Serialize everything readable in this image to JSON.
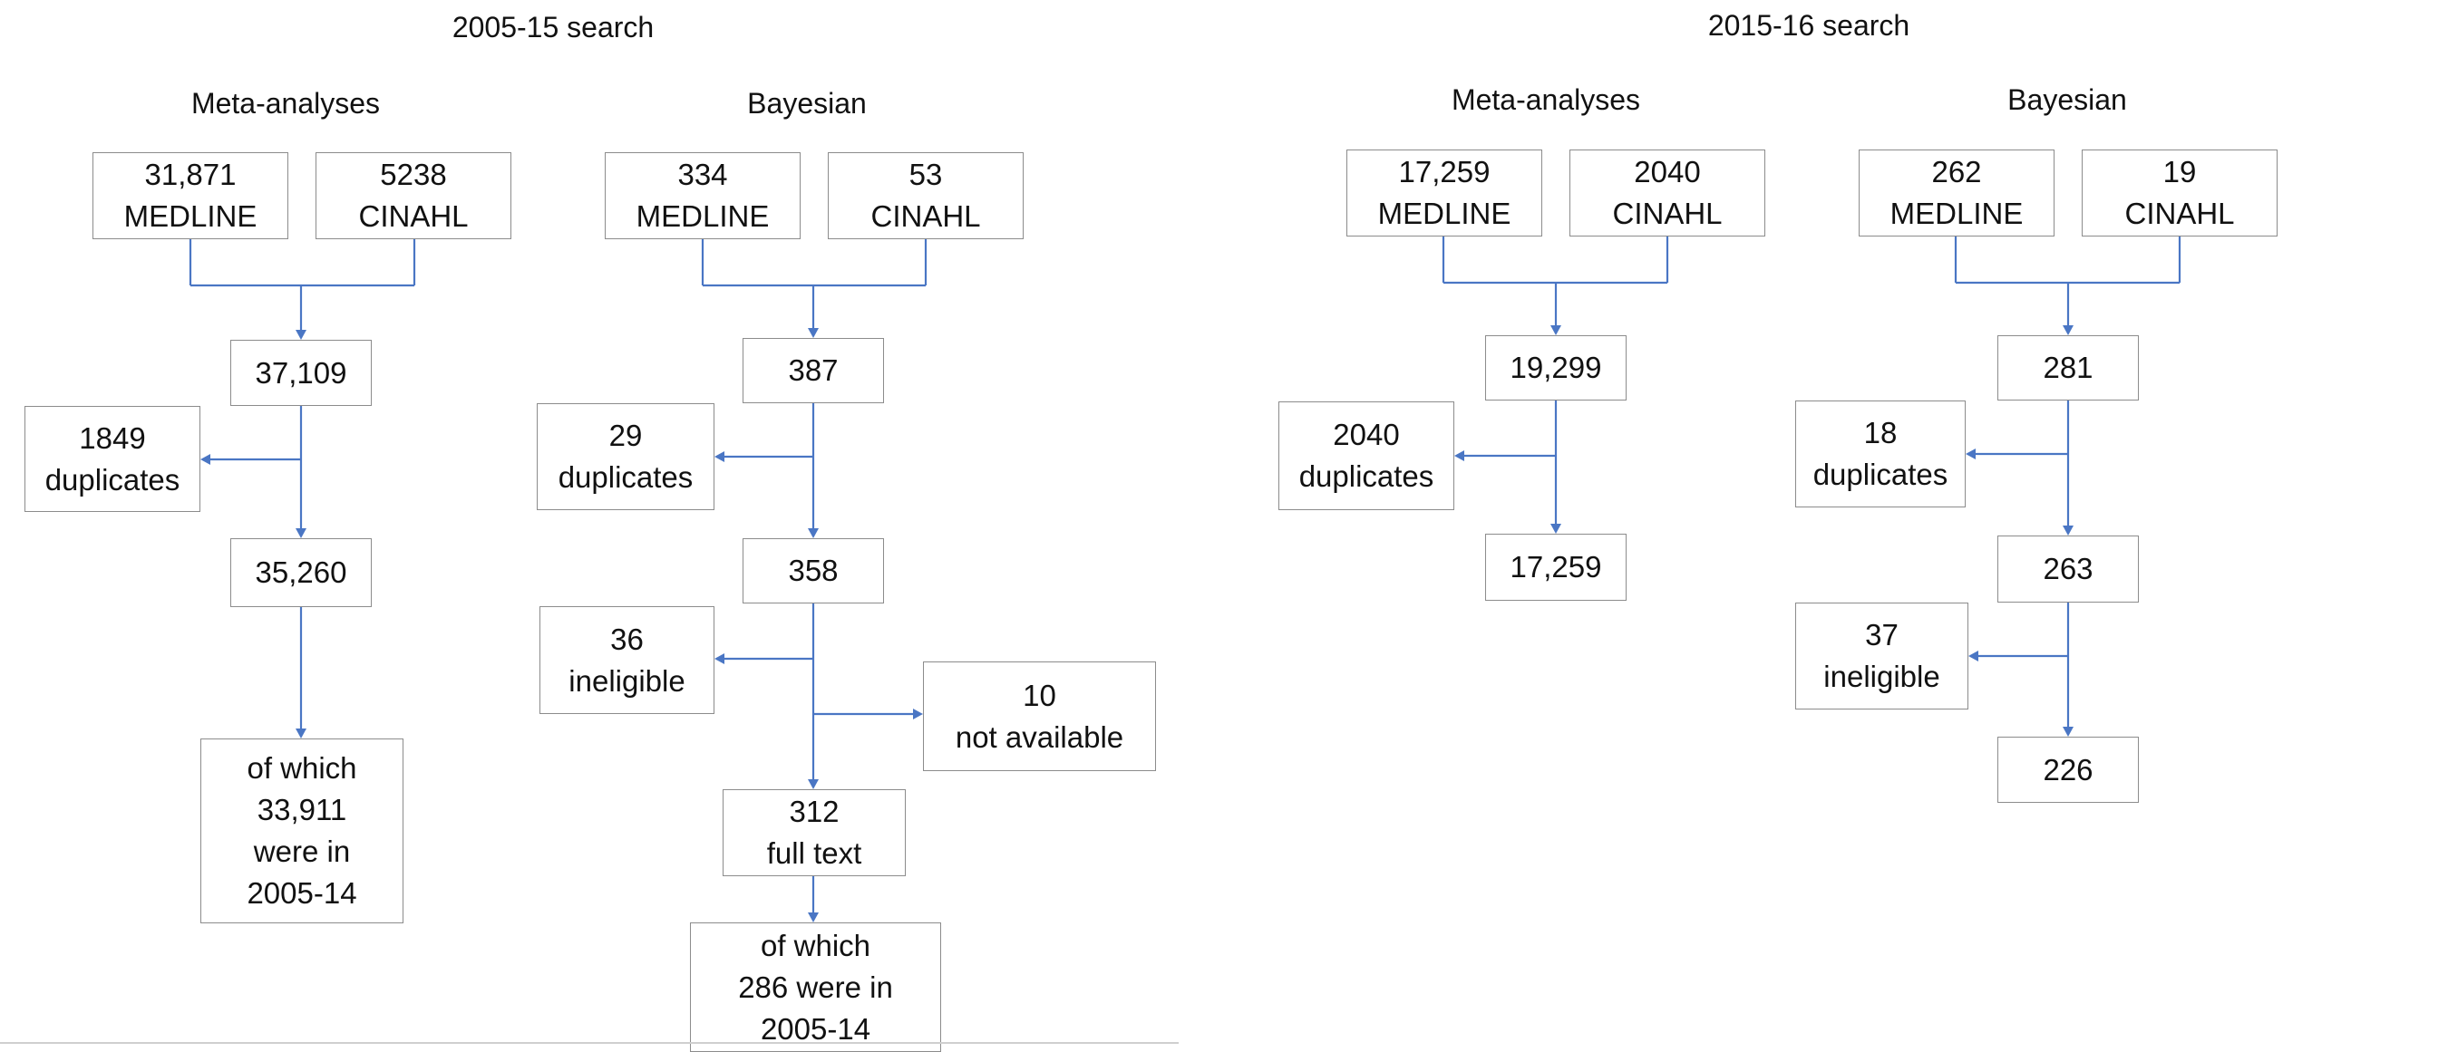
{
  "search_2005_15": {
    "title": "2005-15 search",
    "meta": {
      "heading": "Meta-analyses",
      "medline": [
        "31,871",
        "MEDLINE"
      ],
      "cinahl": [
        "5238",
        "CINAHL"
      ],
      "total": "37,109",
      "duplicates": [
        "1849",
        "duplicates"
      ],
      "after_dup": "35,260",
      "final": [
        "of which",
        "33,911",
        "were in",
        "2005-14"
      ]
    },
    "bayes": {
      "heading": "Bayesian",
      "medline": [
        "334",
        "MEDLINE"
      ],
      "cinahl": [
        "53",
        "CINAHL"
      ],
      "total": "387",
      "duplicates": [
        "29",
        "duplicates"
      ],
      "after_dup": "358",
      "ineligible": [
        "36",
        "ineligible"
      ],
      "not_available": [
        "10",
        "not available"
      ],
      "full_text": [
        "312",
        "full text"
      ],
      "final": [
        "of which",
        "286 were in",
        "2005-14"
      ]
    }
  },
  "search_2015_16": {
    "title": "2015-16 search",
    "meta": {
      "heading": "Meta-analyses",
      "medline": [
        "17,259",
        "MEDLINE"
      ],
      "cinahl": [
        "2040",
        "CINAHL"
      ],
      "total": "19,299",
      "duplicates": [
        "2040",
        "duplicates"
      ],
      "final": "17,259"
    },
    "bayes": {
      "heading": "Bayesian",
      "medline": [
        "262",
        "MEDLINE"
      ],
      "cinahl": [
        "19",
        "CINAHL"
      ],
      "total": "281",
      "duplicates": [
        "18",
        "duplicates"
      ],
      "after_dup": "263",
      "ineligible": [
        "37",
        "ineligible"
      ],
      "final": "226"
    }
  }
}
